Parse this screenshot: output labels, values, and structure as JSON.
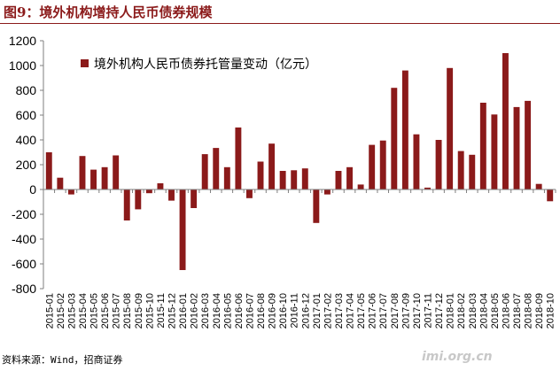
{
  "figure": {
    "title": "图9：境外机构增持人民币债券规模",
    "source": "资料来源：Wind，招商证券",
    "watermark": "imi.org.cn"
  },
  "colors": {
    "bar": "#8b1a1a",
    "axis": "#7f7f7f",
    "title": "#8b1a1a"
  },
  "chart_data": {
    "type": "bar",
    "title": "",
    "xlabel": "",
    "ylabel": "",
    "ylim": [
      -800,
      1200
    ],
    "yticks": [
      -800,
      -600,
      -400,
      -200,
      0,
      200,
      400,
      600,
      800,
      1000,
      1200
    ],
    "grid": false,
    "legend_position": "top-left",
    "categories": [
      "2015-01",
      "2015-02",
      "2015-03",
      "2015-04",
      "2015-05",
      "2015-06",
      "2015-07",
      "2015-08",
      "2015-09",
      "2015-10",
      "2015-11",
      "2015-12",
      "2016-01",
      "2016-02",
      "2016-03",
      "2016-04",
      "2016-05",
      "2016-06",
      "2016-07",
      "2016-08",
      "2016-09",
      "2016-10",
      "2016-11",
      "2016-12",
      "2017-01",
      "2017-02",
      "2017-03",
      "2017-04",
      "2017-05",
      "2017-06",
      "2017-07",
      "2017-08",
      "2017-09",
      "2017-10",
      "2017-11",
      "2017-12",
      "2018-01",
      "2018-02",
      "2018-03",
      "2018-04",
      "2018-05",
      "2018-06",
      "2018-07",
      "2018-08",
      "2018-09",
      "2018-10"
    ],
    "series": [
      {
        "name": "境外机构人民币债券托管量变动（亿元）",
        "values": [
          300,
          95,
          -40,
          270,
          160,
          180,
          275,
          -250,
          -160,
          -30,
          50,
          -90,
          -650,
          -150,
          285,
          335,
          180,
          500,
          -70,
          225,
          370,
          150,
          155,
          170,
          -270,
          -40,
          150,
          180,
          40,
          360,
          395,
          820,
          960,
          445,
          15,
          400,
          980,
          310,
          280,
          700,
          605,
          1100,
          665,
          715,
          45,
          -95
        ]
      }
    ]
  }
}
